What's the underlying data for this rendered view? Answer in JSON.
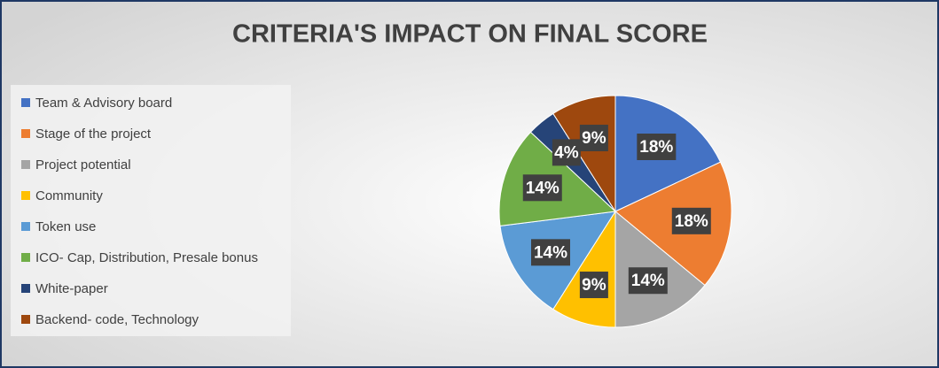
{
  "chart_data": {
    "type": "pie",
    "title": "CRITERIA'S IMPACT ON FINAL SCORE",
    "categories": [
      "Team & Advisory board",
      "Stage of the project",
      "Project potential",
      "Community",
      "Token use",
      "ICO- Cap, Distribution, Presale bonus",
      "White-paper",
      "Backend- code, Technology"
    ],
    "values": [
      18,
      18,
      14,
      9,
      14,
      14,
      4,
      9
    ],
    "value_labels": [
      "18%",
      "18%",
      "14%",
      "9%",
      "14%",
      "14%",
      "4%",
      "9%"
    ],
    "colors": [
      "#4472c4",
      "#ed7d31",
      "#a5a5a5",
      "#ffc000",
      "#5b9bd5",
      "#70ad47",
      "#264478",
      "#9e480e"
    ],
    "legend": "left"
  }
}
